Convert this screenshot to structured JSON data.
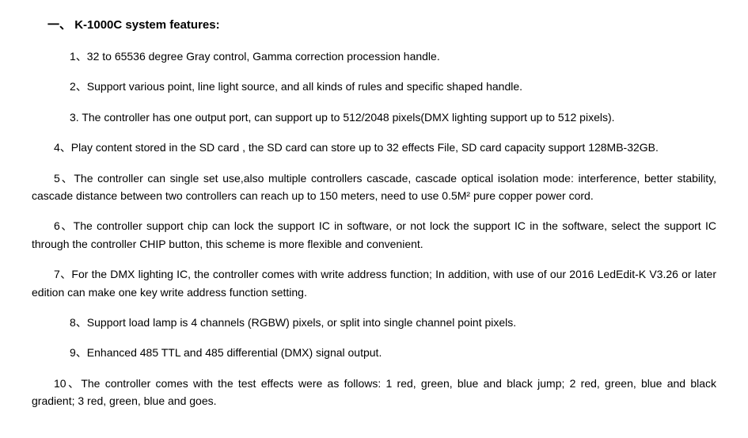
{
  "title": {
    "prefix": "一、",
    "text": "K-1000C system features:"
  },
  "features": [
    {
      "num": "1",
      "sep": "、",
      "text": "32 to 65536 degree Gray control, Gamma correction procession handle.",
      "justified": false
    },
    {
      "num": "2",
      "sep": "、",
      "text": "Support various point, line light source, and all kinds of rules and specific shaped handle.",
      "justified": false
    },
    {
      "num": "3",
      "sep": ". ",
      "text": "The controller has one output port, can support up to 512/2048 pixels(DMX lighting support up to 512 pixels).",
      "justified": false
    },
    {
      "num": "4",
      "sep": "、",
      "text": "Play content stored in the SD card , the SD card can store up to 32 effects File, SD card capacity support 128MB-32GB.",
      "justified": true
    },
    {
      "num": "5",
      "sep": "、",
      "text": "The controller can single set use,also multiple controllers cascade, cascade optical isolation mode: interference, better stability, cascade distance between two controllers can reach up to 150 meters, need to use 0.5M² pure copper power cord.",
      "justified": true
    },
    {
      "num": "6",
      "sep": "、",
      "text": "The controller support chip can lock the support IC in software, or not lock the support IC in the software, select the support IC through the controller CHIP button, this scheme is more flexible and convenient.",
      "justified": true
    },
    {
      "num": "7",
      "sep": "、",
      "text": "For the DMX lighting IC, the controller comes with write address function; In addition,   with use of our 2016 LedEdit-K V3.26 or later edition can make one key write address function setting.",
      "justified": true
    },
    {
      "num": "8",
      "sep": "、",
      "text": "Support load lamp is 4 channels (RGBW) pixels, or split into single channel point pixels.",
      "justified": false
    },
    {
      "num": "9",
      "sep": "、",
      "text": "Enhanced 485 TTL and 485 differential (DMX) signal output.",
      "justified": false
    },
    {
      "num": "10",
      "sep": "、",
      "text": "The controller comes with the test effects were as follows: 1 red, green, blue and black jump; 2 red, green, blue and black gradient; 3 red, green, blue and goes.",
      "justified": true
    }
  ]
}
